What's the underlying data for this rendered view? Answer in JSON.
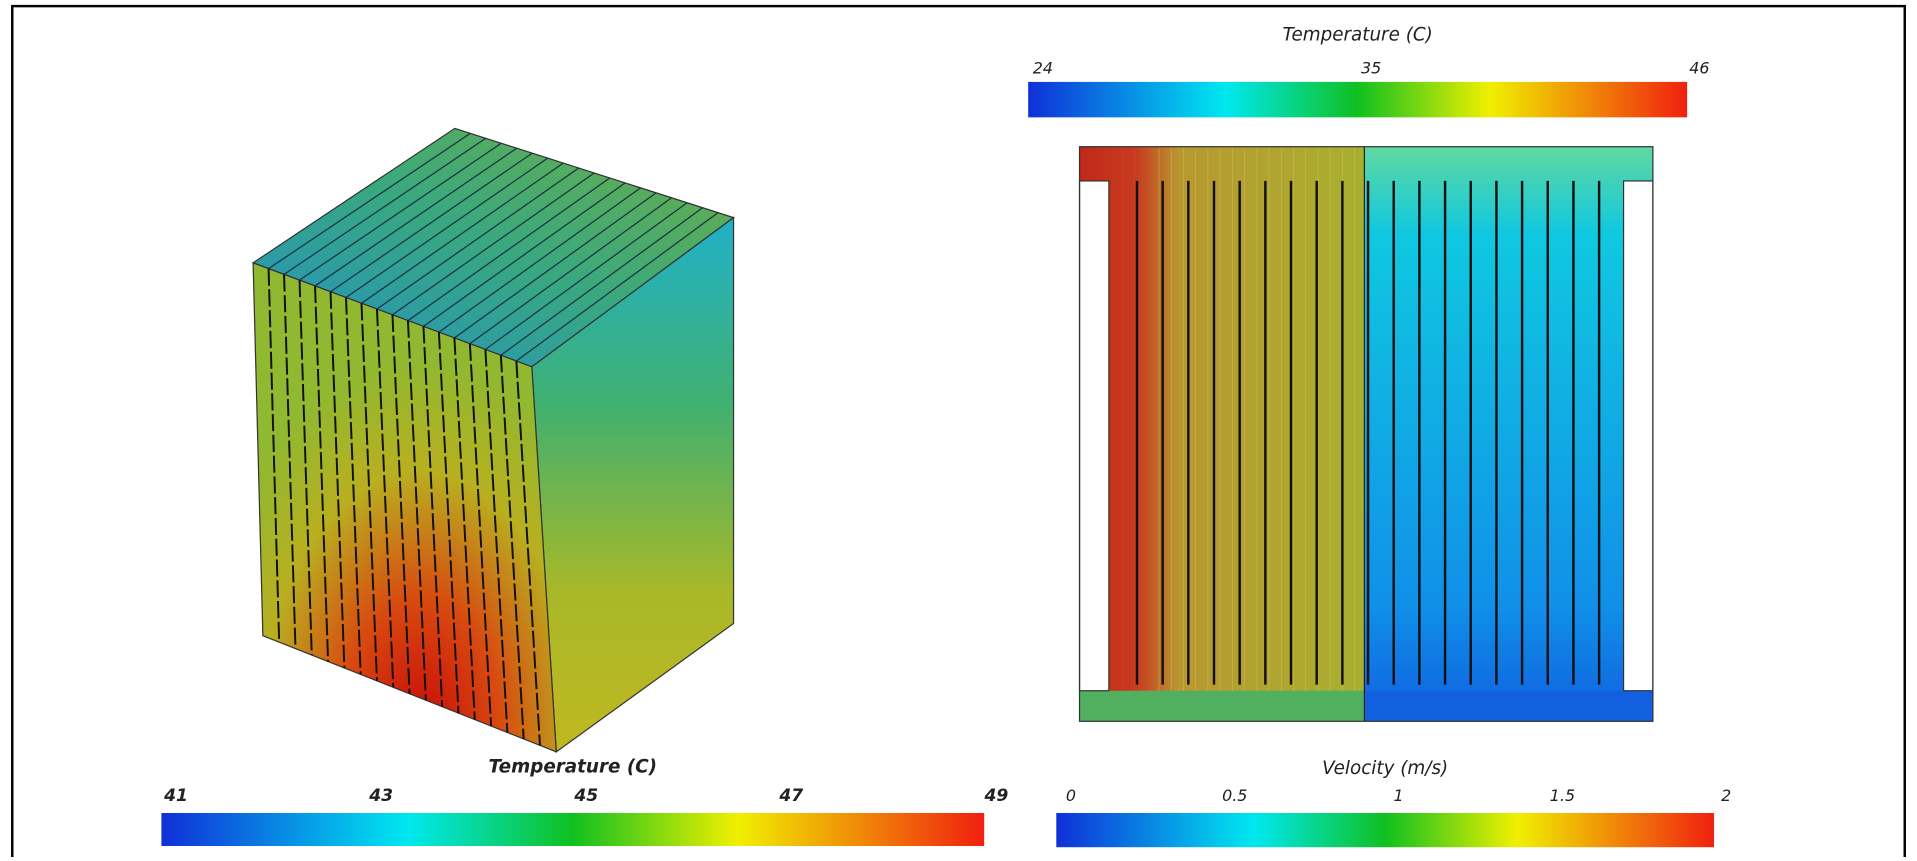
{
  "colorbars": [
    {
      "title": "Temperature (C)",
      "ticks": [
        41,
        43,
        45,
        47,
        49
      ]
    },
    {
      "title": "Temperature (C)",
      "ticks": [
        24,
        35,
        46
      ]
    },
    {
      "title": "Velocity (m/s)",
      "ticks": [
        0,
        0.5,
        1,
        1.5,
        2
      ]
    }
  ]
}
